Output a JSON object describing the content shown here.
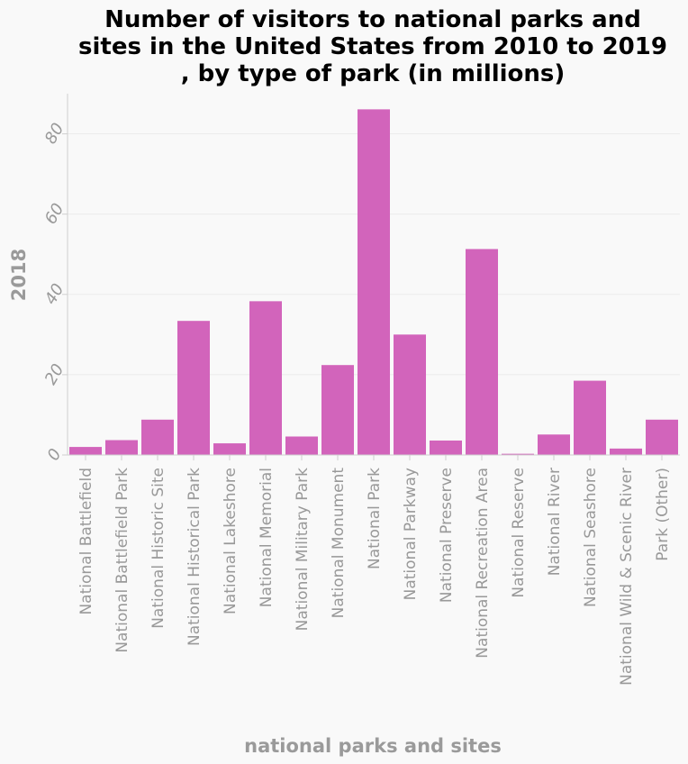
{
  "colors": {
    "bar": "#d264bb",
    "grid": "#ececec",
    "axis": "#d0d0d0",
    "text": "#999999"
  },
  "chart_data": {
    "type": "bar",
    "title_lines": [
      "Number of visitors to national parks and",
      "sites in the United States from 2010 to 2019",
      ", by type of park (in millions)"
    ],
    "xlabel": "national parks and sites",
    "ylabel": "2018",
    "ylim": [
      0,
      90
    ],
    "yticks": [
      0,
      20,
      40,
      60,
      80
    ],
    "grid": true,
    "categories": [
      "National Battlefield",
      "National Battlefield Park",
      "National Historic Site",
      "National Historical Park",
      "National Lakeshore",
      "National Memorial",
      "National Military Park",
      "National Monument",
      "National Park",
      "National Parkway",
      "National Preserve",
      "National Recreation Area",
      "National Reserve",
      "National River",
      "National Seashore",
      "National Wild & Scenic River",
      "Park (Other)"
    ],
    "values": [
      2.0,
      3.7,
      8.8,
      33.4,
      2.9,
      38.3,
      4.6,
      22.4,
      86.1,
      30.0,
      3.6,
      51.3,
      0.3,
      5.1,
      18.5,
      1.6,
      8.8
    ]
  }
}
